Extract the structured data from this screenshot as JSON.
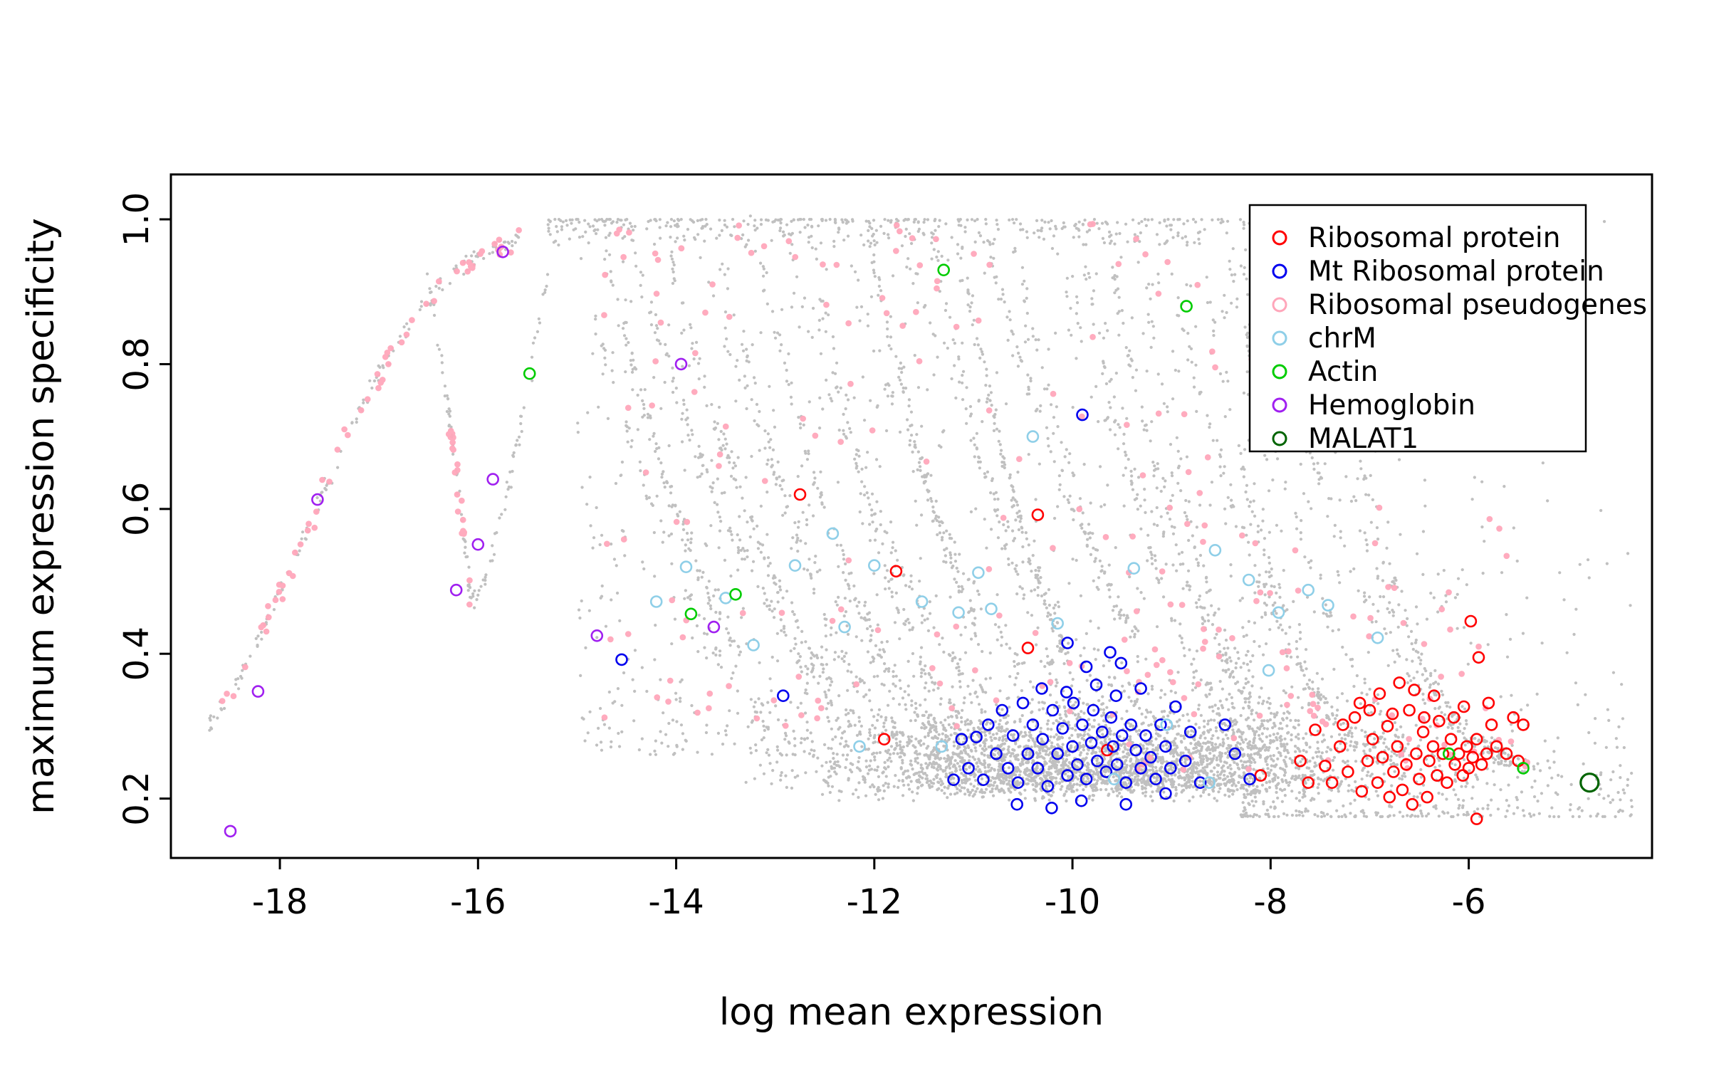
{
  "chart_data": {
    "type": "scatter",
    "title": "",
    "xlabel": "log mean expression",
    "ylabel": "maximum expression specificity",
    "xlim": [
      -19.1,
      -4.15
    ],
    "ylim": [
      0.118,
      1.062
    ],
    "xticks": [
      "-18",
      "-16",
      "-14",
      "-12",
      "-10",
      "-8",
      "-6"
    ],
    "xtick_values": [
      -18,
      -16,
      -14,
      -12,
      -10,
      -8,
      -6
    ],
    "yticks": [
      "0.2",
      "0.4",
      "0.6",
      "0.8",
      "1.0"
    ],
    "ytick_values": [
      0.2,
      0.4,
      0.6,
      0.8,
      1.0
    ],
    "grid": false,
    "legend_position": "top-right",
    "legend": [
      {
        "label": "Ribosomal protein",
        "color": "#ff0000"
      },
      {
        "label": "Mt Ribosomal protein",
        "color": "#0000ee"
      },
      {
        "label": "Ribosomal pseudogenes",
        "color": "#ffa6ba"
      },
      {
        "label": "chrM",
        "color": "#8fcfe8"
      },
      {
        "label": "Actin",
        "color": "#00cc00"
      },
      {
        "label": "Hemoglobin",
        "color": "#a020f0"
      },
      {
        "label": "MALAT1",
        "color": "#006400"
      }
    ],
    "series": [
      {
        "id": "ribosomal-protein",
        "name": "Ribosomal protein",
        "color": "#ff0000",
        "marker": "open-circle",
        "radius": 7.5,
        "stroke_width": 2.6,
        "points": [
          [
            -7.55,
            0.295
          ],
          [
            -7.45,
            0.245
          ],
          [
            -7.38,
            0.222
          ],
          [
            -7.3,
            0.272
          ],
          [
            -7.22,
            0.237
          ],
          [
            -7.15,
            0.312
          ],
          [
            -7.08,
            0.21
          ],
          [
            -7.02,
            0.252
          ],
          [
            -6.97,
            0.282
          ],
          [
            -6.92,
            0.222
          ],
          [
            -6.87,
            0.257
          ],
          [
            -6.82,
            0.3
          ],
          [
            -6.8,
            0.202
          ],
          [
            -6.76,
            0.237
          ],
          [
            -6.72,
            0.272
          ],
          [
            -6.67,
            0.212
          ],
          [
            -6.63,
            0.247
          ],
          [
            -6.6,
            0.322
          ],
          [
            -6.57,
            0.192
          ],
          [
            -6.53,
            0.262
          ],
          [
            -6.5,
            0.227
          ],
          [
            -6.46,
            0.292
          ],
          [
            -6.42,
            0.202
          ],
          [
            -6.4,
            0.252
          ],
          [
            -6.36,
            0.272
          ],
          [
            -6.32,
            0.232
          ],
          [
            -6.3,
            0.307
          ],
          [
            -6.26,
            0.262
          ],
          [
            -6.22,
            0.222
          ],
          [
            -6.18,
            0.282
          ],
          [
            -6.14,
            0.247
          ],
          [
            -6.1,
            0.262
          ],
          [
            -6.06,
            0.232
          ],
          [
            -6.02,
            0.272
          ],
          [
            -6.0,
            0.242
          ],
          [
            -5.96,
            0.257
          ],
          [
            -5.92,
            0.282
          ],
          [
            -5.87,
            0.247
          ],
          [
            -5.82,
            0.262
          ],
          [
            -5.77,
            0.302
          ],
          [
            -5.72,
            0.272
          ],
          [
            -5.92,
            0.172
          ],
          [
            -6.7,
            0.36
          ],
          [
            -6.55,
            0.35
          ],
          [
            -6.9,
            0.345
          ],
          [
            -7.1,
            0.332
          ],
          [
            -6.35,
            0.342
          ],
          [
            -6.05,
            0.327
          ],
          [
            -5.8,
            0.332
          ],
          [
            -5.55,
            0.312
          ],
          [
            -5.45,
            0.302
          ],
          [
            -6.45,
            0.312
          ],
          [
            -6.77,
            0.317
          ],
          [
            -7.27,
            0.302
          ],
          [
            -7.0,
            0.322
          ],
          [
            -6.15,
            0.312
          ],
          [
            -5.62,
            0.262
          ],
          [
            -5.5,
            0.252
          ],
          [
            -8.1,
            0.232
          ],
          [
            -7.7,
            0.252
          ],
          [
            -7.62,
            0.222
          ],
          [
            -12.75,
            0.62
          ],
          [
            -10.35,
            0.592
          ],
          [
            -11.78,
            0.514
          ],
          [
            -10.45,
            0.408
          ],
          [
            -11.9,
            0.282
          ],
          [
            -9.65,
            0.267
          ],
          [
            -5.98,
            0.445
          ],
          [
            -5.9,
            0.395
          ]
        ]
      },
      {
        "id": "mt-ribosomal-protein",
        "name": "Mt Ribosomal protein",
        "color": "#0000ee",
        "marker": "open-circle",
        "radius": 7.5,
        "stroke_width": 2.6,
        "points": [
          [
            -11.2,
            0.226
          ],
          [
            -11.12,
            0.282
          ],
          [
            -11.05,
            0.242
          ],
          [
            -10.97,
            0.285
          ],
          [
            -10.9,
            0.226
          ],
          [
            -10.85,
            0.302
          ],
          [
            -10.77,
            0.262
          ],
          [
            -10.71,
            0.322
          ],
          [
            -10.65,
            0.242
          ],
          [
            -10.6,
            0.287
          ],
          [
            -10.55,
            0.222
          ],
          [
            -10.5,
            0.332
          ],
          [
            -10.45,
            0.262
          ],
          [
            -10.4,
            0.302
          ],
          [
            -10.35,
            0.242
          ],
          [
            -10.3,
            0.282
          ],
          [
            -10.25,
            0.217
          ],
          [
            -10.2,
            0.322
          ],
          [
            -10.15,
            0.262
          ],
          [
            -10.1,
            0.297
          ],
          [
            -10.05,
            0.232
          ],
          [
            -10.0,
            0.272
          ],
          [
            -9.99,
            0.332
          ],
          [
            -9.95,
            0.247
          ],
          [
            -9.9,
            0.302
          ],
          [
            -9.86,
            0.227
          ],
          [
            -9.81,
            0.277
          ],
          [
            -9.79,
            0.322
          ],
          [
            -9.75,
            0.252
          ],
          [
            -9.7,
            0.292
          ],
          [
            -9.66,
            0.237
          ],
          [
            -9.61,
            0.312
          ],
          [
            -9.59,
            0.272
          ],
          [
            -9.55,
            0.247
          ],
          [
            -9.5,
            0.287
          ],
          [
            -9.46,
            0.222
          ],
          [
            -9.41,
            0.302
          ],
          [
            -9.36,
            0.267
          ],
          [
            -9.31,
            0.242
          ],
          [
            -9.26,
            0.287
          ],
          [
            -9.21,
            0.257
          ],
          [
            -9.16,
            0.227
          ],
          [
            -9.11,
            0.302
          ],
          [
            -9.06,
            0.272
          ],
          [
            -9.01,
            0.242
          ],
          [
            -9.31,
            0.352
          ],
          [
            -9.56,
            0.342
          ],
          [
            -9.76,
            0.357
          ],
          [
            -10.06,
            0.347
          ],
          [
            -10.31,
            0.352
          ],
          [
            -9.86,
            0.382
          ],
          [
            -9.51,
            0.387
          ],
          [
            -10.56,
            0.192
          ],
          [
            -10.21,
            0.187
          ],
          [
            -9.91,
            0.197
          ],
          [
            -9.46,
            0.192
          ],
          [
            -9.06,
            0.207
          ],
          [
            -8.86,
            0.252
          ],
          [
            -8.81,
            0.292
          ],
          [
            -8.71,
            0.222
          ],
          [
            -8.46,
            0.302
          ],
          [
            -8.36,
            0.262
          ],
          [
            -8.96,
            0.327
          ],
          [
            -10.05,
            0.415
          ],
          [
            -9.62,
            0.402
          ],
          [
            -8.21,
            0.227
          ],
          [
            -9.9,
            0.73
          ],
          [
            -14.55,
            0.392
          ],
          [
            -12.92,
            0.342
          ]
        ]
      },
      {
        "id": "chrm",
        "name": "chrM",
        "color": "#8fcfe8",
        "marker": "open-circle",
        "radius": 7.5,
        "stroke_width": 2.6,
        "points": [
          [
            -13.9,
            0.52
          ],
          [
            -13.5,
            0.477
          ],
          [
            -12.8,
            0.522
          ],
          [
            -12.42,
            0.566
          ],
          [
            -12.0,
            0.522
          ],
          [
            -12.3,
            0.437
          ],
          [
            -11.52,
            0.472
          ],
          [
            -11.15,
            0.457
          ],
          [
            -10.4,
            0.7
          ],
          [
            -9.38,
            0.518
          ],
          [
            -8.56,
            0.543
          ],
          [
            -8.22,
            0.502
          ],
          [
            -7.62,
            0.488
          ],
          [
            -7.42,
            0.467
          ],
          [
            -8.02,
            0.377
          ],
          [
            -10.15,
            0.442
          ],
          [
            -10.82,
            0.462
          ],
          [
            -9.05,
            0.302
          ],
          [
            -9.58,
            0.227
          ],
          [
            -8.62,
            0.222
          ],
          [
            -11.32,
            0.272
          ],
          [
            -12.15,
            0.272
          ],
          [
            -13.22,
            0.412
          ],
          [
            -14.2,
            0.472
          ],
          [
            -6.92,
            0.422
          ],
          [
            -7.92,
            0.457
          ],
          [
            -10.95,
            0.512
          ]
        ]
      },
      {
        "id": "actin",
        "name": "Actin",
        "color": "#00cc00",
        "marker": "open-circle",
        "radius": 7.5,
        "stroke_width": 2.6,
        "points": [
          [
            -11.3,
            0.93
          ],
          [
            -8.85,
            0.88
          ],
          [
            -15.48,
            0.787
          ],
          [
            -13.85,
            0.455
          ],
          [
            -13.4,
            0.482
          ],
          [
            -6.2,
            0.262
          ],
          [
            -5.45,
            0.242
          ]
        ]
      },
      {
        "id": "hemoglobin",
        "name": "Hemoglobin",
        "color": "#a020f0",
        "marker": "open-circle",
        "radius": 7.5,
        "stroke_width": 2.6,
        "points": [
          [
            -15.75,
            0.955
          ],
          [
            -17.62,
            0.613
          ],
          [
            -16.0,
            0.551
          ],
          [
            -16.22,
            0.488
          ],
          [
            -15.85,
            0.641
          ],
          [
            -18.22,
            0.348
          ],
          [
            -18.5,
            0.155
          ],
          [
            -13.95,
            0.8
          ],
          [
            -14.8,
            0.425
          ],
          [
            -13.62,
            0.437
          ]
        ]
      },
      {
        "id": "malat1",
        "name": "MALAT1",
        "color": "#006400",
        "marker": "open-circle",
        "radius": 12.5,
        "stroke_width": 3.2,
        "points": [
          [
            -4.78,
            0.222
          ]
        ]
      }
    ],
    "background": {
      "note": "grey dots = all genes; pink dots = Ribosomal pseudogenes (procedurally placed along the density structures visible in the figure)",
      "seed": 20240601,
      "gray": {
        "color": "#b9b9b9",
        "radius": 2.1
      },
      "pink": {
        "color": "#ffa6ba",
        "radius": 4.3
      },
      "left_arc": {
        "x_start": -18.72,
        "x_end": -15.55,
        "center": -17.7,
        "k": 1.5,
        "base": 0.148,
        "span": 0.862,
        "gray_count": 150,
        "pink_count": 60
      },
      "dip": {
        "gray_count": 110,
        "pink_count": 22
      },
      "top_band": {
        "x_min": -15.3,
        "x_max": -7.3,
        "count": 420
      },
      "fan": {
        "arc_count": 26,
        "x_first": -15.05,
        "x_step": 0.3,
        "points_per_arc": 105
      },
      "cloud": {
        "cx": -9.8,
        "sd": 1.35,
        "count": 2600,
        "y_base": 0.195
      },
      "right": {
        "count": 650,
        "x_min": -8.3,
        "x_max": -4.35
      },
      "diffuse": {
        "count": 900,
        "x_min": -15.0,
        "x_max": -8.0
      },
      "pink_scatter": {
        "count": 230
      }
    }
  }
}
